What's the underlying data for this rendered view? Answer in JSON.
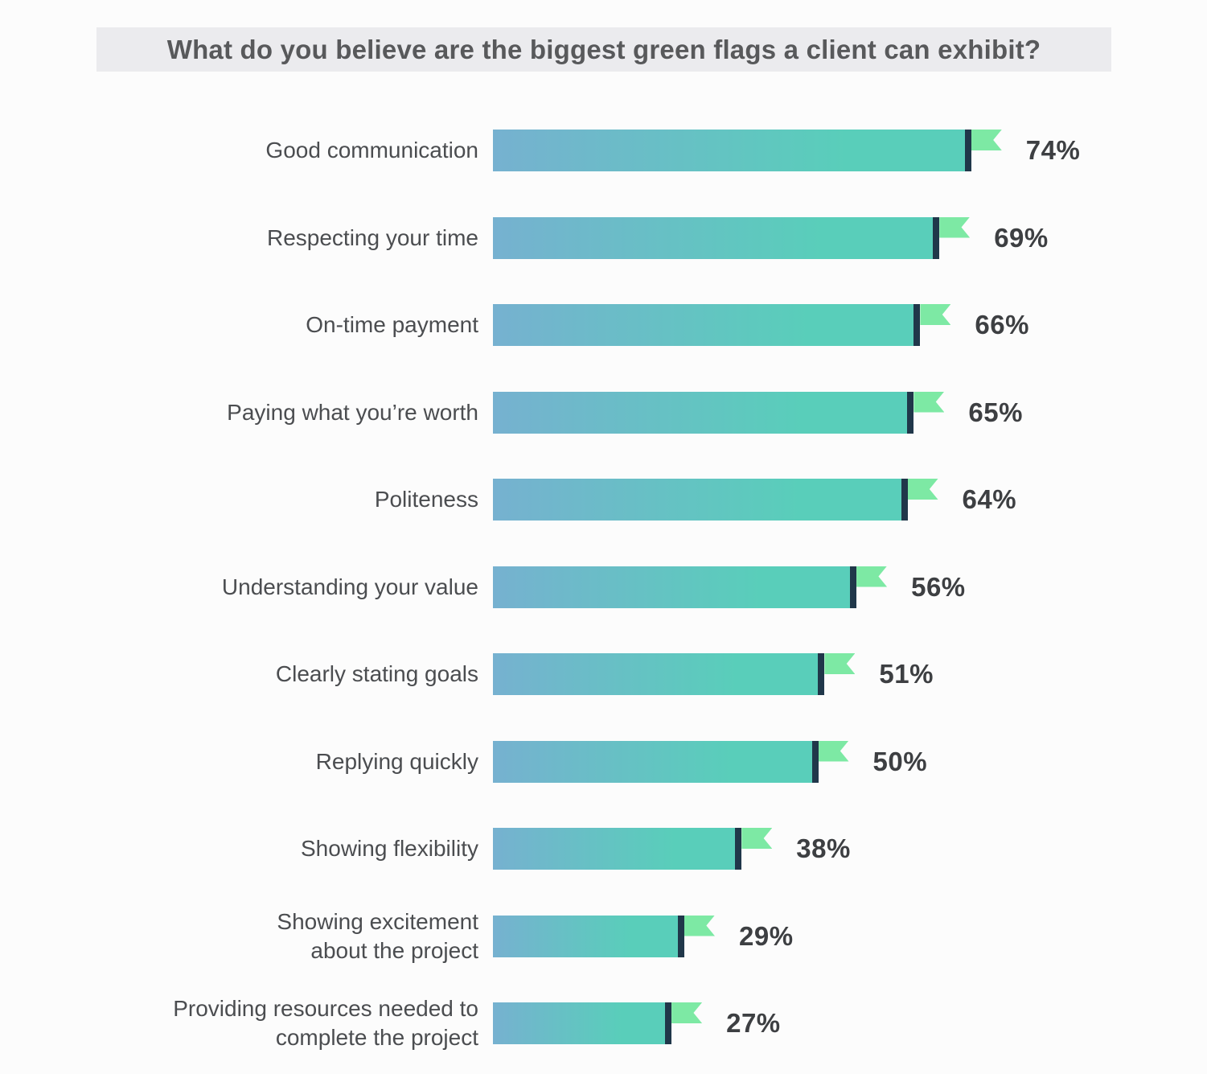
{
  "title": "What do you believe are the biggest green flags a client can exhibit?",
  "colors": {
    "bar_gradient_start": "#76b1d0",
    "bar_gradient_end": "#59ceba",
    "flag_pole": "#20374a",
    "flag": "#7de9a4",
    "title_band_background": "#ebebee",
    "title_text": "#58595b",
    "category_label_text": "#4b4d50",
    "value_label_text": "#3d3f42",
    "page_background": "#fcfcfc"
  },
  "chart_data": {
    "type": "bar",
    "orientation": "horizontal",
    "title": "What do you believe are the biggest green flags a client can exhibit?",
    "unit": "%",
    "xlim": [
      0,
      100
    ],
    "grid": false,
    "legend": false,
    "categories": [
      "Good communication",
      "Respecting your time",
      "On-time payment",
      "Paying what you’re worth",
      "Politeness",
      "Understanding your value",
      "Clearly stating goals",
      "Replying quickly",
      "Showing flexibility",
      "Showing excitement about the project",
      "Providing resources needed to complete the project"
    ],
    "values": [
      74,
      69,
      66,
      65,
      64,
      56,
      51,
      50,
      38,
      29,
      27
    ],
    "items": [
      {
        "label": "Good communication",
        "value": 74,
        "value_label": "74%"
      },
      {
        "label": "Respecting your time",
        "value": 69,
        "value_label": "69%"
      },
      {
        "label": "On-time payment",
        "value": 66,
        "value_label": "66%"
      },
      {
        "label": "Paying what you’re worth",
        "value": 65,
        "value_label": "65%"
      },
      {
        "label": "Politeness",
        "value": 64,
        "value_label": "64%"
      },
      {
        "label": "Understanding your value",
        "value": 56,
        "value_label": "56%"
      },
      {
        "label": "Clearly stating goals",
        "value": 51,
        "value_label": "51%"
      },
      {
        "label": "Replying quickly",
        "value": 50,
        "value_label": "50%"
      },
      {
        "label": "Showing flexibility",
        "value": 38,
        "value_label": "38%"
      },
      {
        "label": "Showing excitement about the project",
        "lines": [
          "Showing excitement",
          "about the project"
        ],
        "value": 29,
        "value_label": "29%"
      },
      {
        "label": "Providing resources needed to complete the project",
        "lines": [
          "Providing resources needed to",
          "complete the project"
        ],
        "value": 27,
        "value_label": "27%"
      }
    ]
  }
}
